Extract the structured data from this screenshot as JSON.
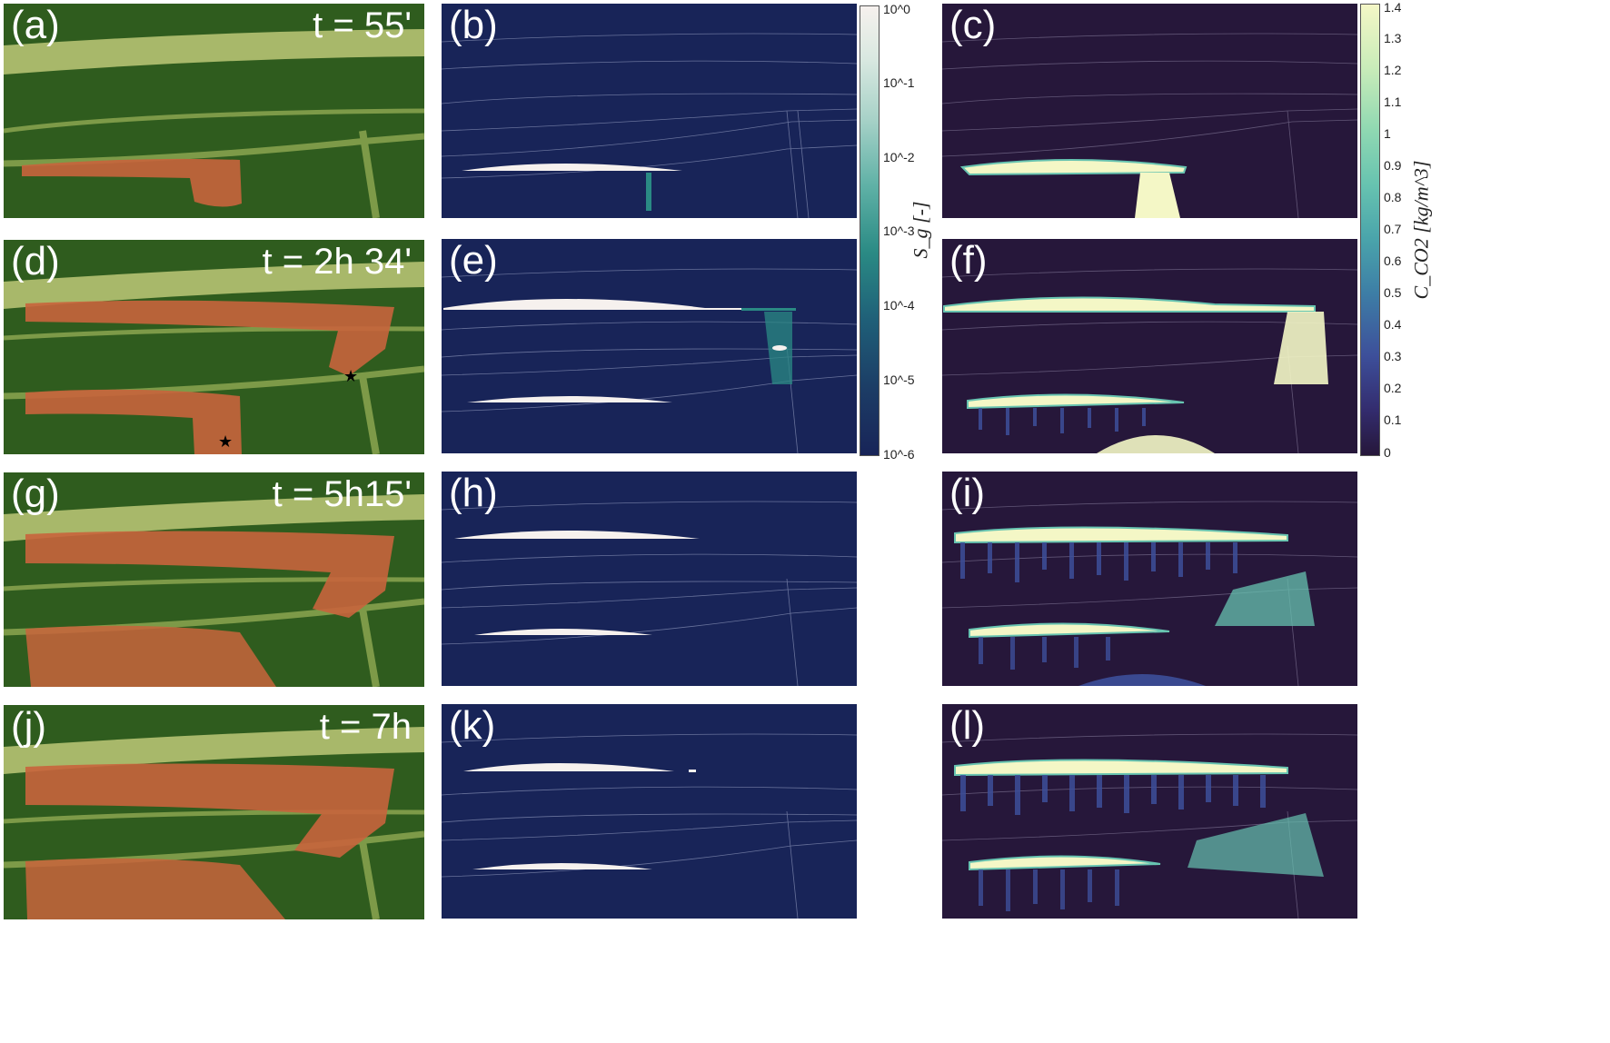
{
  "panels": {
    "a": {
      "label": "(a)",
      "time": "t = 55'"
    },
    "b": {
      "label": "(b)"
    },
    "c": {
      "label": "(c)"
    },
    "d": {
      "label": "(d)",
      "time": "t = 2h 34'"
    },
    "e": {
      "label": "(e)"
    },
    "f": {
      "label": "(f)"
    },
    "g": {
      "label": "(g)",
      "time": "t = 5h15'"
    },
    "h": {
      "label": "(h)"
    },
    "i": {
      "label": "(i)"
    },
    "j": {
      "label": "(j)",
      "time": "t = 7h"
    },
    "k": {
      "label": "(k)"
    },
    "l": {
      "label": "(l)"
    }
  },
  "colorbar_sg": {
    "label": "S_g [-]",
    "ticks": [
      "10^0",
      "10^-1",
      "10^-2",
      "10^-3",
      "10^-4",
      "10^-5",
      "10^-6"
    ],
    "scale": "log",
    "range": [
      1e-06,
      1
    ]
  },
  "colorbar_c": {
    "label": "C_CO2 [kg/m^3]",
    "ticks": [
      "1.4",
      "1.3",
      "1.2",
      "1.1",
      "1",
      "0.9",
      "0.8",
      "0.7",
      "0.6",
      "0.5",
      "0.4",
      "0.3",
      "0.2",
      "0.1",
      "0"
    ],
    "range": [
      0,
      1.42
    ]
  },
  "colors": {
    "photo_sand": "#2f5c1e",
    "photo_layer": "#a8b86a",
    "photo_plume": "#c8643c",
    "sg_background": "#182458",
    "c_background": "#26173a",
    "plume_white": "#f6f1ee",
    "c_high": "#f4f7c6",
    "c_mid": "#67c3b0",
    "c_low": "#3d4f9a"
  }
}
